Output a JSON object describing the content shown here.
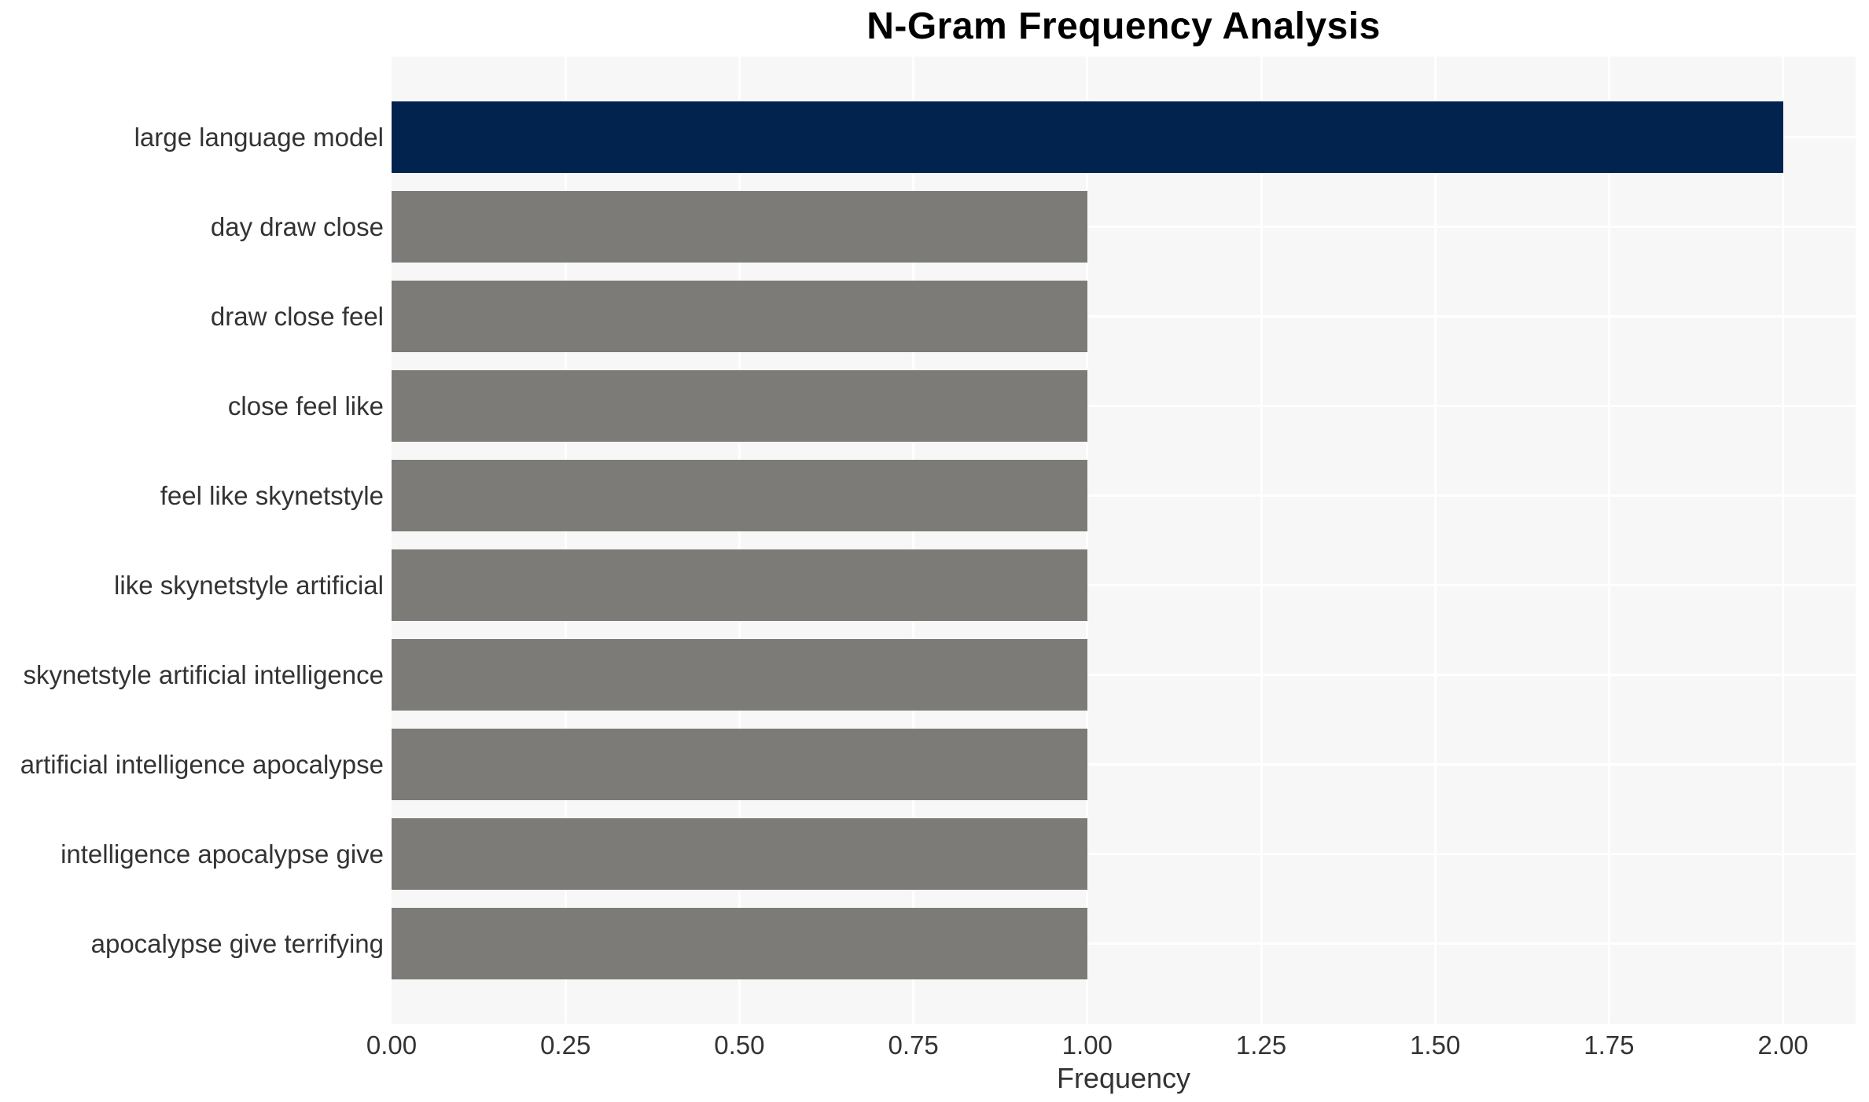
{
  "chart_data": {
    "type": "bar",
    "orientation": "horizontal",
    "title": "N-Gram Frequency Analysis",
    "xlabel": "Frequency",
    "ylabel": "",
    "categories": [
      "large language model",
      "day draw close",
      "draw close feel",
      "close feel like",
      "feel like skynetstyle",
      "like skynetstyle artificial",
      "skynetstyle artificial intelligence",
      "artificial intelligence apocalypse",
      "intelligence apocalypse give",
      "apocalypse give terrifying"
    ],
    "values": [
      2,
      1,
      1,
      1,
      1,
      1,
      1,
      1,
      1,
      1
    ],
    "highlight_index": 0,
    "xlim": [
      0,
      2.105
    ],
    "xticks": {
      "values": [
        0,
        0.25,
        0.5,
        0.75,
        1.0,
        1.25,
        1.5,
        1.75,
        2.0
      ],
      "labels": [
        "0.00",
        "0.25",
        "0.50",
        "0.75",
        "1.00",
        "1.25",
        "1.50",
        "1.75",
        "2.00"
      ]
    },
    "grid": "major white gridlines, vertical at each x tick and horizontal at each category center",
    "legend_position": "none"
  },
  "colors": {
    "bar_highlight": "#02234e",
    "bar_default": "#7c7b77",
    "panel_background": "#f7f7f7",
    "gridline": "#ffffff",
    "title_text": "#000000",
    "axis_text": "#333333",
    "page_background": "#ffffff"
  }
}
